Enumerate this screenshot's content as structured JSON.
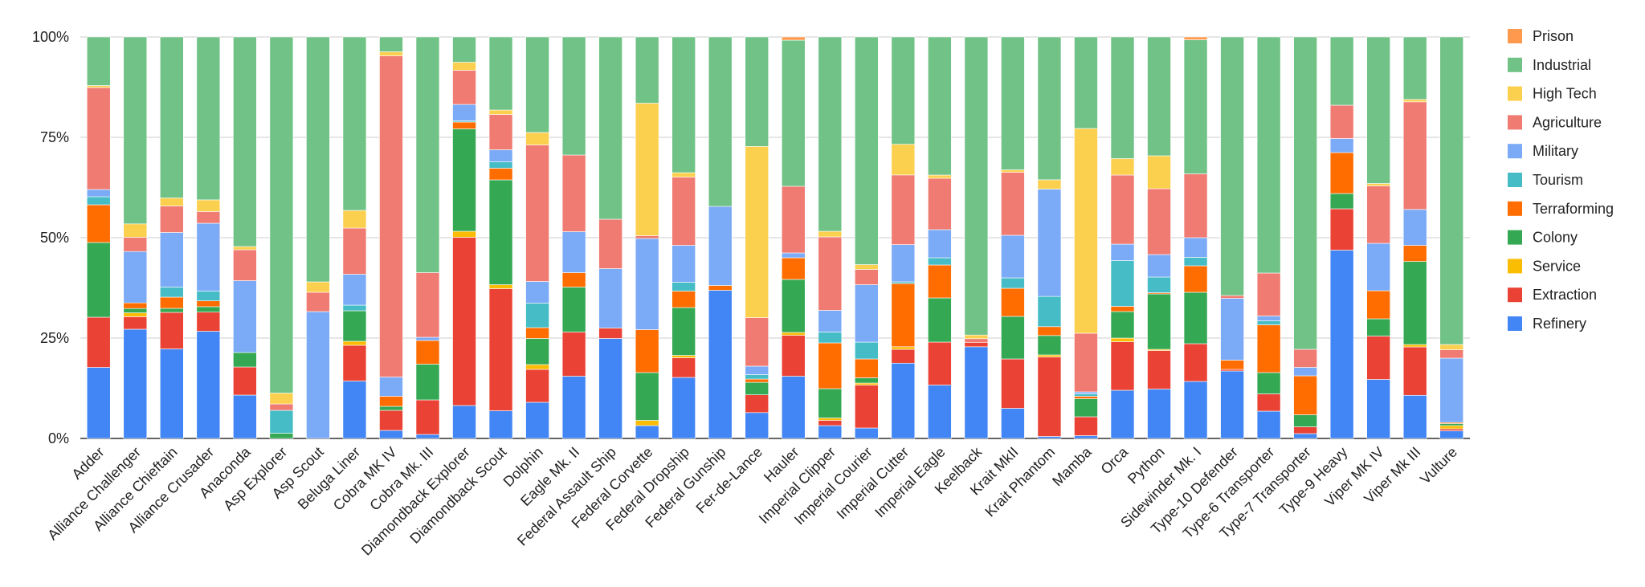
{
  "chart_data": {
    "type": "bar",
    "stacked": true,
    "normalized": true,
    "ylim": [
      0,
      100
    ],
    "y_ticks": [
      "0%",
      "25%",
      "50%",
      "75%",
      "100%"
    ],
    "grid": true,
    "legend_position": "right",
    "categories": [
      "Adder",
      "Alliance Challenger",
      "Alliance Chieftain",
      "Alliance Crusader",
      "Anaconda",
      "Asp Explorer",
      "Asp Scout",
      "Beluga Liner",
      "Cobra MK IV",
      "Cobra Mk. III",
      "Diamondback Explorer",
      "Diamondback Scout",
      "Dolphin",
      "Eagle Mk. II",
      "Federal Assault Ship",
      "Federal Corvette",
      "Federal Dropship",
      "Federal Gunship",
      "Fer-de-Lance",
      "Hauler",
      "Imperial Clipper",
      "Imperial Courier",
      "Imperial Cutter",
      "Imperial Eagle",
      "Keelback",
      "Krait MkII",
      "Krait Phantom",
      "Mamba",
      "Orca",
      "Python",
      "Sidewinder Mk. I",
      "Type-10 Defender",
      "Type-6 Transporter",
      "Type-7 Transporter",
      "Type-9 Heavy",
      "Viper MK IV",
      "Viper Mk III",
      "Vulture"
    ],
    "series": [
      {
        "name": "Refinery",
        "color": "#4285f4",
        "values": [
          17.7,
          25.3,
          22.3,
          27.5,
          10.8,
          0,
          0,
          14.3,
          2,
          1,
          8.2,
          6.9,
          9,
          15.5,
          24.9,
          3.2,
          15.2,
          36.9,
          6.4,
          15.5,
          3.2,
          2.6,
          17.4,
          13.3,
          22.6,
          7.5,
          0.5,
          0.7,
          12,
          12.3,
          14.2,
          16.8,
          6.8,
          1.2,
          46.9,
          14.7,
          10.7,
          1.9
        ]
      },
      {
        "name": "Extraction",
        "color": "#ea4335",
        "values": [
          12.5,
          2.9,
          9.1,
          4.9,
          7,
          0,
          0,
          8.9,
          5,
          8.6,
          41.9,
          30.4,
          8.2,
          11,
          2.6,
          0,
          4.9,
          0,
          4.4,
          10.2,
          1.3,
          10.7,
          3.2,
          10.7,
          1.1,
          12.3,
          19.7,
          4.7,
          12.1,
          9.6,
          9.4,
          0.4,
          4.3,
          1.7,
          10.3,
          10.8,
          12,
          0.5
        ]
      },
      {
        "name": "Service",
        "color": "#fbbc04",
        "values": [
          0,
          0.9,
          0,
          0,
          0,
          0,
          0,
          1,
          0,
          0,
          1.5,
          1,
          1.2,
          0,
          0,
          1.3,
          0.6,
          0,
          0,
          0.7,
          0.6,
          0.5,
          0.6,
          0,
          0,
          0,
          0.5,
          0,
          0.9,
          0.3,
          0,
          0,
          0,
          0,
          0,
          0,
          0.6,
          0.8
        ]
      },
      {
        "name": "Colony",
        "color": "#34a853",
        "values": [
          18.6,
          1,
          1,
          1.4,
          3.6,
          1.3,
          0,
          7.6,
          1,
          8.9,
          25.5,
          26.1,
          6.5,
          11.2,
          0,
          11.9,
          11.9,
          0,
          3.1,
          13.2,
          7.3,
          1.3,
          0,
          11,
          0,
          10.6,
          4.8,
          4.5,
          6.6,
          13.8,
          12.8,
          0,
          5.3,
          3,
          3.8,
          4.3,
          20.6,
          0.5
        ]
      },
      {
        "name": "Terraforming",
        "color": "#ff6d01",
        "values": [
          9.4,
          1.3,
          2.8,
          1.5,
          0,
          0,
          0,
          0,
          2.5,
          5.9,
          1.7,
          2.9,
          2.7,
          3.6,
          0,
          10.7,
          4.1,
          1.2,
          0.8,
          5.4,
          11.4,
          4.7,
          14.6,
          8.2,
          0,
          7,
          2.2,
          0.6,
          1.3,
          0.3,
          6.6,
          2.3,
          11.9,
          9.7,
          10.2,
          7,
          4,
          0.3
        ]
      },
      {
        "name": "Tourism",
        "color": "#46bdc6",
        "values": [
          2,
          0,
          2.5,
          2.5,
          0,
          5.7,
          0,
          1.4,
          0,
          0,
          0.3,
          1.6,
          6.1,
          0,
          0,
          0,
          2.2,
          0,
          1.1,
          0,
          2.7,
          4.2,
          0.4,
          1.8,
          0,
          2.6,
          7.5,
          0.6,
          11.4,
          3.9,
          2.1,
          0,
          1,
          0,
          0,
          0,
          0,
          0
        ]
      },
      {
        "name": "Military",
        "color": "#7baaf7",
        "values": [
          1.8,
          11.9,
          13.6,
          17.4,
          17.9,
          0,
          31.6,
          7.7,
          4.8,
          0.8,
          4.1,
          3,
          5.4,
          10.2,
          14.8,
          22.7,
          9.2,
          19.7,
          2.1,
          1.2,
          5.4,
          14.3,
          8.6,
          7,
          0,
          10.6,
          26.6,
          0.5,
          4.1,
          5.6,
          4.9,
          15.4,
          1.2,
          2.1,
          3.5,
          11.8,
          8.9,
          16
        ]
      },
      {
        "name": "Agriculture",
        "color": "#f07b72",
        "values": [
          25.4,
          3.3,
          6.6,
          3,
          7.7,
          1.6,
          4.8,
          11.5,
          80,
          16.1,
          8.5,
          8.8,
          34,
          19.1,
          12.3,
          0.7,
          17,
          0,
          12,
          16.6,
          18.3,
          3.8,
          16.1,
          12.8,
          0.9,
          15.7,
          0,
          14.6,
          17.2,
          16.4,
          15.9,
          0.7,
          10.7,
          4.5,
          8.3,
          14.3,
          26.7,
          2.1
        ]
      },
      {
        "name": "High Tech",
        "color": "#fcd04f",
        "values": [
          0.5,
          3.1,
          2,
          3,
          0.8,
          2.7,
          2.6,
          4.4,
          1,
          0,
          2,
          1.1,
          3.1,
          0,
          0,
          33,
          1.1,
          0,
          42.4,
          0,
          1.4,
          1.2,
          7.1,
          0.8,
          0.9,
          0.6,
          2.3,
          51,
          4.1,
          8.2,
          0,
          0,
          0,
          0,
          0,
          0.6,
          0.6,
          1.3
        ]
      },
      {
        "name": "Industrial",
        "color": "#71c287",
        "values": [
          12.1,
          43.3,
          40.1,
          41.8,
          52.2,
          88.7,
          61,
          43.2,
          3.7,
          58.7,
          6.3,
          18.2,
          23.8,
          29.4,
          45.4,
          16.5,
          33.8,
          42.2,
          27.1,
          36.4,
          48.4,
          56.7,
          24.8,
          34.4,
          73.5,
          33.1,
          35.4,
          22.8,
          30.3,
          29.6,
          33.4,
          64.4,
          58.8,
          77.8,
          17,
          36.5,
          15.5,
          76.6
        ]
      },
      {
        "name": "Prison",
        "color": "#ff994d",
        "values": [
          0,
          0,
          0,
          0,
          0,
          0,
          0,
          0,
          0,
          0,
          0,
          0,
          0,
          0,
          0,
          0,
          0,
          0,
          0,
          0.8,
          0,
          0,
          0,
          0,
          0,
          0,
          0,
          0,
          0,
          0,
          0.7,
          0,
          0,
          0,
          0,
          0,
          0,
          0
        ]
      }
    ],
    "legend_order": [
      "Prison",
      "Industrial",
      "High Tech",
      "Agriculture",
      "Military",
      "Tourism",
      "Terraforming",
      "Colony",
      "Service",
      "Extraction",
      "Refinery"
    ]
  }
}
